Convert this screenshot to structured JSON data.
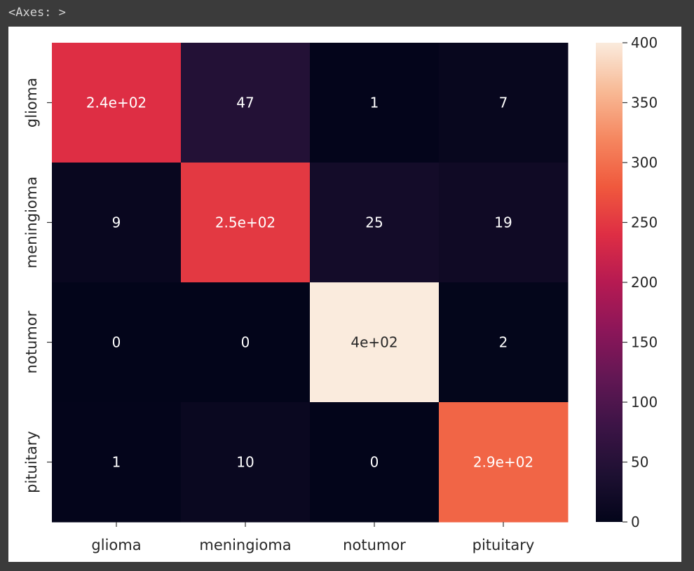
{
  "output": {
    "repr_text": "<Axes: >"
  },
  "chart_data": {
    "type": "heatmap",
    "title": "",
    "xlabel": "",
    "ylabel": "",
    "x_categories": [
      "glioma",
      "meningioma",
      "notumor",
      "pituitary"
    ],
    "y_categories": [
      "glioma",
      "meningioma",
      "notumor",
      "pituitary"
    ],
    "values": [
      [
        240,
        47,
        1,
        7
      ],
      [
        9,
        250,
        25,
        19
      ],
      [
        0,
        0,
        400,
        2
      ],
      [
        1,
        10,
        0,
        290
      ]
    ],
    "annotations": [
      [
        "2.4e+02",
        "47",
        "1",
        "7"
      ],
      [
        "9",
        "2.5e+02",
        "25",
        "19"
      ],
      [
        "0",
        "0",
        "4e+02",
        "2"
      ],
      [
        "1",
        "10",
        "0",
        "2.9e+02"
      ]
    ],
    "colormap": "rocket",
    "colorbar": {
      "min": 0,
      "max": 400,
      "ticks": [
        0,
        50,
        100,
        150,
        200,
        250,
        300,
        350,
        400
      ]
    },
    "grid": false
  }
}
